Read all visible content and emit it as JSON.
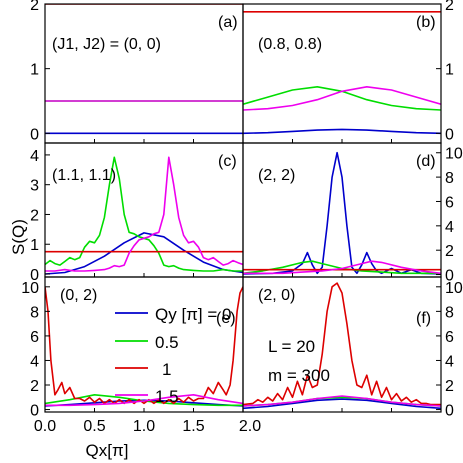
{
  "figure": {
    "ylabel": "S(Q)",
    "xlabel": "Qx[π]",
    "legend": {
      "title": "Qy [π] = 0",
      "entries": [
        {
          "label": "Qy [π] = 0",
          "color": "#0000cc"
        },
        {
          "label": "0.5",
          "color": "#00dd00"
        },
        {
          "label": "1",
          "color": "#dd0000"
        },
        {
          "label": "1.5",
          "color": "#ee00ee"
        }
      ]
    },
    "params_text": [
      "L = 20",
      "m = 300"
    ],
    "colors": {
      "qy0": "#0000cc",
      "qy05": "#00dd00",
      "qy1": "#dd0000",
      "qy15": "#ee00ee"
    }
  },
  "chart_data": [
    {
      "panel": "a",
      "type": "line",
      "tag": "(a)",
      "label": "(J1, J2) = (0, 0)",
      "xlim": [
        0,
        2
      ],
      "ylim": [
        -0.15,
        2
      ],
      "yticks": [
        0,
        1,
        2
      ],
      "yticks_side": "left",
      "series": [
        {
          "name": "Qy=0",
          "x": [
            0,
            2
          ],
          "y": [
            0,
            0
          ]
        },
        {
          "name": "Qy=0.5",
          "x": [
            0,
            2
          ],
          "y": [
            0.5,
            0.5
          ]
        },
        {
          "name": "Qy=1",
          "x": [
            0,
            2
          ],
          "y": [
            2,
            2
          ]
        },
        {
          "name": "Qy=1.5",
          "x": [
            0,
            2
          ],
          "y": [
            0.5,
            0.5
          ]
        }
      ]
    },
    {
      "panel": "b",
      "type": "line",
      "tag": "(b)",
      "label": "(0.8, 0.8)",
      "xlim": [
        0,
        2
      ],
      "ylim": [
        -0.15,
        2
      ],
      "yticks": [
        0,
        1,
        2
      ],
      "yticks_side": "right",
      "series": [
        {
          "name": "Qy=0",
          "x": [
            0,
            0.25,
            0.5,
            0.75,
            1.0,
            1.25,
            1.5,
            1.75,
            2.0
          ],
          "y": [
            0.0,
            0.01,
            0.03,
            0.05,
            0.06,
            0.05,
            0.03,
            0.01,
            0.0
          ]
        },
        {
          "name": "Qy=0.5",
          "x": [
            0,
            0.25,
            0.5,
            0.75,
            1.0,
            1.25,
            1.5,
            1.75,
            2.0
          ],
          "y": [
            0.45,
            0.56,
            0.67,
            0.72,
            0.65,
            0.52,
            0.43,
            0.38,
            0.36
          ]
        },
        {
          "name": "Qy=1",
          "x": [
            0,
            2
          ],
          "y": [
            1.88,
            1.88
          ]
        },
        {
          "name": "Qy=1.5",
          "x": [
            0,
            0.25,
            0.5,
            0.75,
            1.0,
            1.25,
            1.5,
            1.75,
            2.0
          ],
          "y": [
            0.36,
            0.38,
            0.43,
            0.52,
            0.65,
            0.72,
            0.67,
            0.56,
            0.45
          ]
        }
      ]
    },
    {
      "panel": "c",
      "type": "line",
      "tag": "(c)",
      "label": "(1.1, 1.1)",
      "xlim": [
        0,
        2
      ],
      "ylim": [
        -0.1,
        4.4
      ],
      "yticks": [
        0,
        1,
        2,
        3,
        4
      ],
      "yticks_side": "left",
      "series": [
        {
          "name": "Qy=0",
          "x": [
            0,
            0.2,
            0.4,
            0.6,
            0.8,
            1.0,
            1.2,
            1.4,
            1.6,
            1.8,
            2.0
          ],
          "y": [
            0.0,
            0.05,
            0.25,
            0.6,
            1.05,
            1.38,
            1.25,
            0.8,
            0.4,
            0.15,
            0.05
          ]
        },
        {
          "name": "Qy=0.5",
          "x": [
            0,
            0.05,
            0.1,
            0.15,
            0.2,
            0.25,
            0.3,
            0.35,
            0.4,
            0.45,
            0.5,
            0.55,
            0.6,
            0.65,
            0.7,
            0.75,
            0.8,
            0.85,
            0.9,
            0.95,
            1.0,
            1.05,
            1.1,
            1.15,
            1.2,
            1.25,
            1.3,
            1.35,
            1.4,
            1.5,
            1.6,
            1.7,
            1.8,
            1.9,
            2.0
          ],
          "y": [
            0.32,
            0.45,
            0.35,
            0.3,
            0.42,
            0.55,
            0.48,
            0.55,
            0.9,
            1.1,
            1.05,
            1.3,
            1.9,
            3.0,
            3.92,
            3.2,
            2.0,
            1.4,
            1.35,
            1.25,
            1.2,
            1.15,
            0.95,
            0.7,
            0.3,
            0.25,
            0.28,
            0.2,
            0.15,
            0.12,
            0.1,
            0.1,
            0.15,
            0.1,
            0.1
          ]
        },
        {
          "name": "Qy=1",
          "x": [
            0,
            2
          ],
          "y": [
            0.75,
            0.75
          ]
        },
        {
          "name": "Qy=1.5",
          "x": [
            0,
            0.1,
            0.2,
            0.3,
            0.4,
            0.5,
            0.6,
            0.65,
            0.7,
            0.75,
            0.8,
            0.85,
            0.9,
            0.95,
            1.0,
            1.05,
            1.1,
            1.15,
            1.2,
            1.25,
            1.3,
            1.35,
            1.4,
            1.45,
            1.5,
            1.55,
            1.6,
            1.65,
            1.7,
            1.75,
            1.8,
            1.85,
            1.9,
            1.95,
            2.0
          ],
          "y": [
            0.1,
            0.1,
            0.15,
            0.1,
            0.1,
            0.12,
            0.15,
            0.2,
            0.28,
            0.25,
            0.3,
            0.7,
            0.95,
            1.15,
            1.2,
            1.25,
            1.35,
            1.4,
            2.0,
            3.92,
            3.0,
            1.9,
            1.3,
            1.05,
            1.1,
            0.9,
            0.55,
            0.48,
            0.55,
            0.42,
            0.3,
            0.35,
            0.45,
            0.38,
            0.32
          ]
        }
      ]
    },
    {
      "panel": "d",
      "type": "line",
      "tag": "(d)",
      "label": "(2, 2)",
      "xlim": [
        0,
        2
      ],
      "ylim": [
        -0.2,
        10.8
      ],
      "yticks": [
        0,
        2,
        4,
        6,
        8,
        10
      ],
      "yticks_side": "right",
      "series": [
        {
          "name": "Qy=0",
          "x": [
            0,
            0.3,
            0.5,
            0.6,
            0.65,
            0.7,
            0.75,
            0.8,
            0.85,
            0.9,
            0.95,
            1.0,
            1.05,
            1.1,
            1.15,
            1.2,
            1.25,
            1.3,
            1.35,
            1.4,
            1.5,
            1.6,
            1.7,
            1.8,
            2.0
          ],
          "y": [
            0.05,
            0.1,
            0.3,
            0.9,
            1.8,
            0.8,
            0.1,
            0.6,
            4.0,
            8.0,
            10.0,
            8.0,
            4.0,
            0.6,
            0.1,
            0.8,
            1.8,
            0.9,
            0.3,
            0.1,
            0.5,
            0.1,
            0.4,
            0.1,
            0.05
          ]
        },
        {
          "name": "Qy=0.5",
          "x": [
            0,
            0.2,
            0.4,
            0.6,
            0.7,
            0.8,
            1.0,
            1.2,
            1.4,
            1.6,
            1.8,
            2.0
          ],
          "y": [
            0.1,
            0.3,
            0.6,
            1.0,
            1.1,
            0.9,
            0.5,
            0.3,
            0.2,
            0.1,
            0.1,
            0.1
          ]
        },
        {
          "name": "Qy=1",
          "x": [
            0,
            2
          ],
          "y": [
            0.4,
            0.4
          ]
        },
        {
          "name": "Qy=1.5",
          "x": [
            0,
            0.2,
            0.4,
            0.6,
            0.8,
            1.0,
            1.2,
            1.3,
            1.4,
            1.6,
            1.8,
            2.0
          ],
          "y": [
            0.1,
            0.1,
            0.1,
            0.2,
            0.3,
            0.5,
            0.9,
            1.1,
            1.0,
            0.6,
            0.3,
            0.1
          ]
        }
      ]
    },
    {
      "panel": "e",
      "type": "line",
      "tag": "(e)",
      "label": "(0, 2)",
      "xlim": [
        0,
        2
      ],
      "ylim": [
        -0.2,
        10.8
      ],
      "yticks": [
        0,
        2,
        4,
        6,
        8,
        10
      ],
      "yticks_side": "left",
      "xticks": [
        0.0,
        0.5,
        1.0,
        1.5,
        2.0
      ],
      "xtick_labels": [
        "0.0",
        "0.5",
        "1.0",
        "1.5",
        "2.0"
      ],
      "series": [
        {
          "name": "Qy=0",
          "x": [
            0,
            0.25,
            0.5,
            0.75,
            1.0,
            1.25,
            1.5,
            1.75,
            2.0
          ],
          "y": [
            0.3,
            0.4,
            0.55,
            0.7,
            0.75,
            0.7,
            0.55,
            0.4,
            0.3
          ]
        },
        {
          "name": "Qy=0.5",
          "x": [
            0,
            0.25,
            0.5,
            0.75,
            1.0,
            1.25,
            1.5,
            1.75,
            2.0
          ],
          "y": [
            0.5,
            0.8,
            1.2,
            1.0,
            0.7,
            0.5,
            0.4,
            0.35,
            0.35
          ]
        },
        {
          "name": "Qy=1",
          "x": [
            0,
            0.03,
            0.06,
            0.1,
            0.13,
            0.17,
            0.2,
            0.25,
            0.3,
            0.35,
            0.4,
            0.45,
            0.5,
            0.55,
            0.6,
            0.65,
            0.7,
            0.75,
            0.8,
            0.85,
            0.9,
            0.95,
            1.0,
            1.05,
            1.1,
            1.15,
            1.2,
            1.25,
            1.3,
            1.35,
            1.4,
            1.45,
            1.5,
            1.55,
            1.6,
            1.65,
            1.7,
            1.75,
            1.8,
            1.83,
            1.87,
            1.9,
            1.94,
            1.97,
            2.0
          ],
          "y": [
            10.0,
            8.0,
            4.0,
            1.2,
            1.6,
            2.2,
            1.3,
            1.8,
            0.9,
            0.9,
            0.7,
            1.0,
            0.6,
            0.9,
            0.5,
            0.8,
            0.5,
            0.8,
            0.5,
            0.8,
            0.5,
            0.8,
            0.5,
            0.8,
            0.5,
            0.8,
            0.5,
            0.8,
            0.5,
            0.9,
            0.6,
            1.0,
            0.7,
            0.9,
            0.9,
            1.8,
            1.3,
            2.2,
            1.6,
            1.2,
            2.0,
            4.0,
            8.0,
            9.5,
            10.0
          ]
        },
        {
          "name": "Qy=1.5",
          "x": [
            0,
            0.25,
            0.5,
            0.75,
            1.0,
            1.25,
            1.5,
            1.75,
            2.0
          ],
          "y": [
            0.35,
            0.35,
            0.4,
            0.5,
            0.7,
            1.0,
            1.2,
            0.8,
            0.5
          ]
        }
      ]
    },
    {
      "panel": "f",
      "type": "line",
      "tag": "(f)",
      "label": "(2, 0)",
      "xlim": [
        0,
        2
      ],
      "ylim": [
        -0.2,
        10.8
      ],
      "yticks": [
        0,
        2,
        4,
        6,
        8,
        10
      ],
      "yticks_side": "right",
      "series": [
        {
          "name": "Qy=0",
          "x": [
            0,
            0.25,
            0.5,
            0.75,
            1.0,
            1.25,
            1.5,
            1.75,
            2.0
          ],
          "y": [
            0.1,
            0.25,
            0.5,
            0.75,
            0.85,
            0.75,
            0.5,
            0.25,
            0.1
          ]
        },
        {
          "name": "Qy=0.5",
          "x": [
            0,
            0.25,
            0.5,
            0.75,
            1.0,
            1.25,
            1.5,
            1.75,
            2.0
          ],
          "y": [
            0.3,
            0.4,
            0.6,
            0.9,
            1.0,
            0.9,
            0.6,
            0.4,
            0.3
          ]
        },
        {
          "name": "Qy=1",
          "x": [
            0,
            0.1,
            0.15,
            0.2,
            0.25,
            0.3,
            0.35,
            0.4,
            0.45,
            0.5,
            0.55,
            0.6,
            0.65,
            0.7,
            0.75,
            0.8,
            0.85,
            0.9,
            0.95,
            1.0,
            1.05,
            1.1,
            1.15,
            1.2,
            1.25,
            1.3,
            1.35,
            1.4,
            1.45,
            1.5,
            1.55,
            1.6,
            1.65,
            1.7,
            1.75,
            1.8,
            1.85,
            1.9,
            2.0
          ],
          "y": [
            0.4,
            0.5,
            0.8,
            0.6,
            1.0,
            0.7,
            1.3,
            0.8,
            1.8,
            1.0,
            2.3,
            1.2,
            2.8,
            1.8,
            2.0,
            4.5,
            8.0,
            10.0,
            10.3,
            9.5,
            7.0,
            4.0,
            2.0,
            1.8,
            2.8,
            1.2,
            2.3,
            1.0,
            1.8,
            0.8,
            1.3,
            0.7,
            1.0,
            0.6,
            0.8,
            0.5,
            0.5,
            0.4,
            0.4
          ]
        },
        {
          "name": "Qy=1.5",
          "x": [
            0,
            0.25,
            0.5,
            0.75,
            1.0,
            1.25,
            1.5,
            1.75,
            2.0
          ],
          "y": [
            0.3,
            0.4,
            0.6,
            0.9,
            1.1,
            0.9,
            0.6,
            0.4,
            0.3
          ]
        }
      ]
    }
  ]
}
